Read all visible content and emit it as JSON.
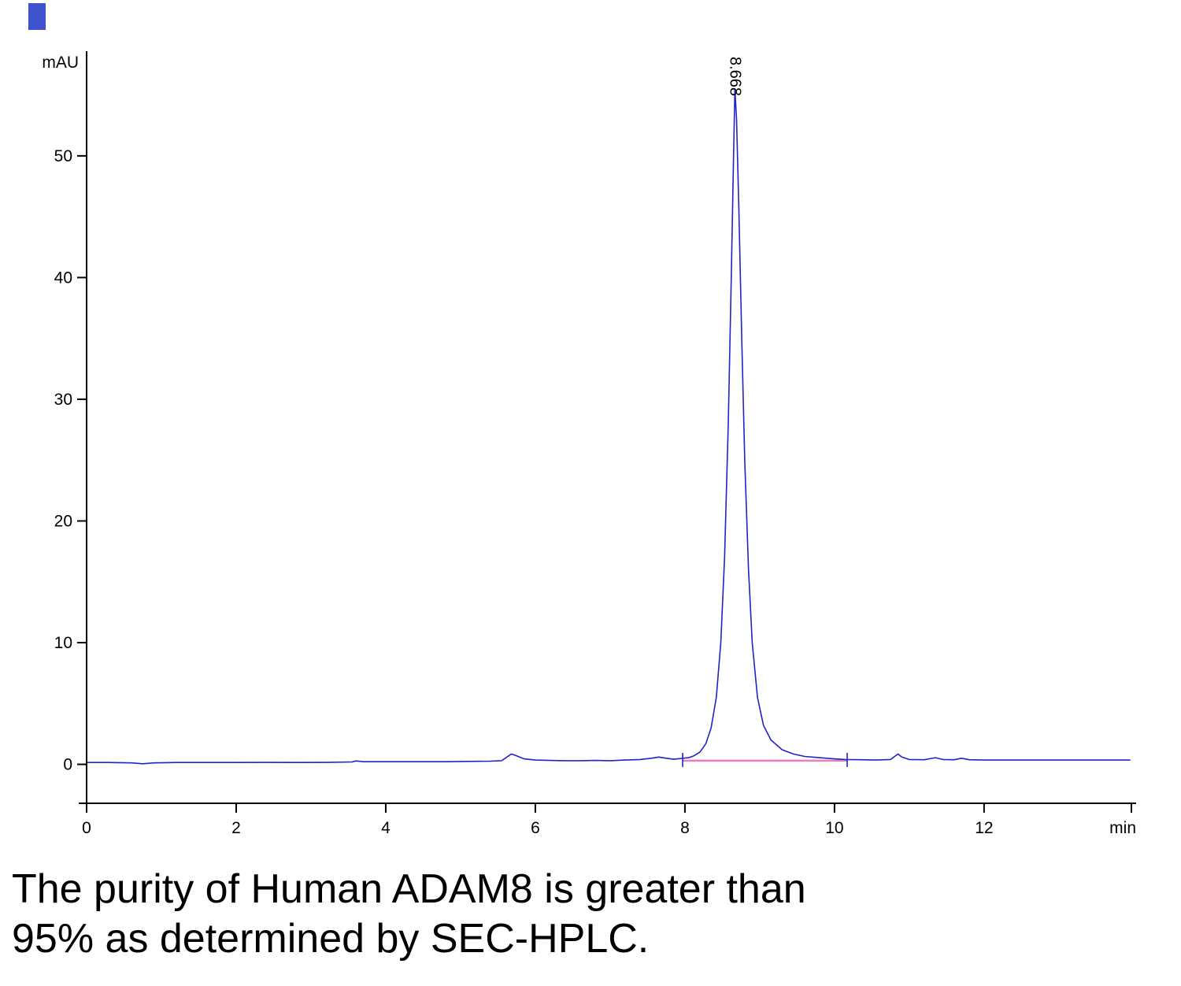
{
  "caption": {
    "line1": "The purity of Human ADAM8 is greater than",
    "line2": "95% as determined by SEC-HPLC."
  },
  "chart_data": {
    "type": "line",
    "title": "",
    "xlabel": "min",
    "ylabel": "mAU",
    "xlim": [
      0,
      13.97
    ],
    "ylim": [
      -3.2,
      58.6
    ],
    "x_ticks": [
      0,
      2,
      4,
      6,
      8,
      10,
      12
    ],
    "y_ticks": [
      0,
      10,
      20,
      30,
      40,
      50
    ],
    "grid": false,
    "legend": "none",
    "trace_color": "#2222c8",
    "axis_color": "#000000",
    "integration_color": "#ee7bbf",
    "peak": {
      "retention_time": 8.668,
      "label": "8.668",
      "height_mau": 55.5
    },
    "integration_baseline": {
      "x_start": 7.97,
      "x_end": 10.17,
      "y": 0.3
    },
    "integration_markers": [
      7.97,
      10.17
    ],
    "series": [
      {
        "name": "UV absorbance (mAU)",
        "points": [
          [
            0,
            0.15
          ],
          [
            0.3,
            0.15
          ],
          [
            0.6,
            0.12
          ],
          [
            0.75,
            0.05
          ],
          [
            0.9,
            0.12
          ],
          [
            1.2,
            0.15
          ],
          [
            1.6,
            0.15
          ],
          [
            2,
            0.15
          ],
          [
            2.4,
            0.16
          ],
          [
            2.8,
            0.15
          ],
          [
            3.2,
            0.16
          ],
          [
            3.55,
            0.2
          ],
          [
            3.6,
            0.28
          ],
          [
            3.7,
            0.22
          ],
          [
            4,
            0.22
          ],
          [
            4.4,
            0.22
          ],
          [
            4.8,
            0.22
          ],
          [
            5.1,
            0.24
          ],
          [
            5.4,
            0.26
          ],
          [
            5.55,
            0.3
          ],
          [
            5.62,
            0.6
          ],
          [
            5.68,
            0.85
          ],
          [
            5.75,
            0.7
          ],
          [
            5.85,
            0.45
          ],
          [
            6,
            0.35
          ],
          [
            6.2,
            0.32
          ],
          [
            6.4,
            0.3
          ],
          [
            6.6,
            0.3
          ],
          [
            6.8,
            0.32
          ],
          [
            7,
            0.3
          ],
          [
            7.2,
            0.35
          ],
          [
            7.4,
            0.4
          ],
          [
            7.55,
            0.5
          ],
          [
            7.65,
            0.6
          ],
          [
            7.75,
            0.5
          ],
          [
            7.85,
            0.42
          ],
          [
            7.95,
            0.48
          ],
          [
            8.05,
            0.55
          ],
          [
            8.12,
            0.7
          ],
          [
            8.2,
            1.0
          ],
          [
            8.28,
            1.7
          ],
          [
            8.35,
            3.0
          ],
          [
            8.42,
            5.5
          ],
          [
            8.48,
            10
          ],
          [
            8.53,
            17
          ],
          [
            8.58,
            28
          ],
          [
            8.62,
            40
          ],
          [
            8.65,
            50
          ],
          [
            8.668,
            55.5
          ],
          [
            8.69,
            53
          ],
          [
            8.72,
            46
          ],
          [
            8.76,
            35
          ],
          [
            8.8,
            25
          ],
          [
            8.85,
            16
          ],
          [
            8.9,
            10
          ],
          [
            8.97,
            5.5
          ],
          [
            9.05,
            3.2
          ],
          [
            9.15,
            2.0
          ],
          [
            9.3,
            1.2
          ],
          [
            9.45,
            0.85
          ],
          [
            9.6,
            0.65
          ],
          [
            9.8,
            0.55
          ],
          [
            10,
            0.45
          ],
          [
            10.15,
            0.4
          ],
          [
            10.35,
            0.38
          ],
          [
            10.55,
            0.35
          ],
          [
            10.75,
            0.4
          ],
          [
            10.85,
            0.85
          ],
          [
            10.9,
            0.6
          ],
          [
            11,
            0.4
          ],
          [
            11.2,
            0.38
          ],
          [
            11.35,
            0.55
          ],
          [
            11.45,
            0.4
          ],
          [
            11.6,
            0.38
          ],
          [
            11.7,
            0.5
          ],
          [
            11.8,
            0.38
          ],
          [
            12,
            0.35
          ],
          [
            12.4,
            0.35
          ],
          [
            12.8,
            0.35
          ],
          [
            13.2,
            0.35
          ],
          [
            13.6,
            0.35
          ],
          [
            13.95,
            0.35
          ]
        ]
      }
    ]
  }
}
